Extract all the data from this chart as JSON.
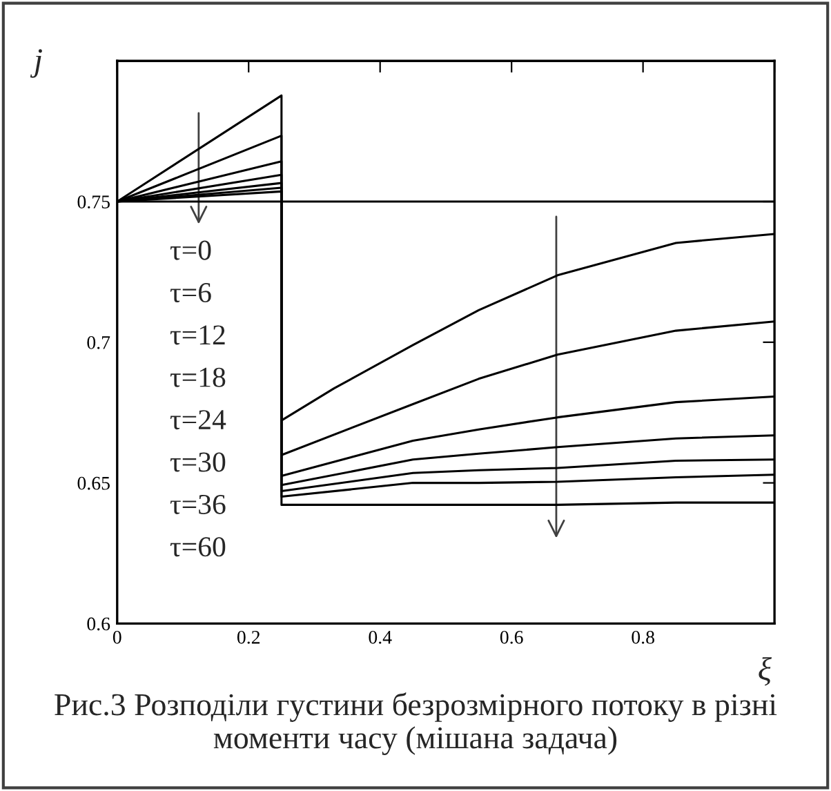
{
  "chart_data": {
    "type": "line",
    "xlabel": "ξ",
    "ylabel": "j",
    "xlim": [
      0,
      1
    ],
    "ylim": [
      0.6,
      0.8
    ],
    "xticks": [
      0,
      0.2,
      0.4,
      0.6,
      0.8,
      {
        "value": 1,
        "label": null
      }
    ],
    "yticks": [
      0.6,
      0.65,
      0.7,
      0.75,
      {
        "value": 0.8,
        "label": null
      }
    ],
    "grid": false,
    "legend": false,
    "marker": "none",
    "line_style": "solid",
    "series": [
      {
        "color": "#000000",
        "x": [
          0,
          1
        ],
        "values": [
          0.75,
          0.75
        ]
      },
      {
        "color": "#000000",
        "x": [
          0,
          0.25,
          0.25,
          0.33,
          0.45,
          0.55,
          0.67,
          0.85,
          1.0
        ],
        "values": [
          0.75,
          0.7877,
          0.6722,
          0.6836,
          0.699,
          0.7114,
          0.7238,
          0.7353,
          0.7385
        ]
      },
      {
        "color": "#000000",
        "x": [
          0,
          0.25,
          0.25,
          0.45,
          0.55,
          0.67,
          0.85,
          1.0
        ],
        "values": [
          0.75,
          0.7734,
          0.6599,
          0.678,
          0.687,
          0.6956,
          0.7041,
          0.7074
        ]
      },
      {
        "color": "#000000",
        "x": [
          0,
          0.25,
          0.25,
          0.45,
          0.55,
          0.67,
          0.85,
          1.0
        ],
        "values": [
          0.75,
          0.7643,
          0.6525,
          0.665,
          0.669,
          0.6733,
          0.6787,
          0.6807
        ]
      },
      {
        "color": "#000000",
        "x": [
          0,
          0.25,
          0.25,
          0.45,
          0.55,
          0.67,
          0.85,
          1.0
        ],
        "values": [
          0.75,
          0.7595,
          0.6492,
          0.6583,
          0.6604,
          0.6627,
          0.6658,
          0.6669
        ]
      },
      {
        "color": "#000000",
        "x": [
          0,
          0.25,
          0.25,
          0.45,
          0.55,
          0.67,
          0.85,
          1.0
        ],
        "values": [
          0.75,
          0.7566,
          0.6471,
          0.6535,
          0.6545,
          0.6553,
          0.6579,
          0.6583
        ]
      },
      {
        "color": "#000000",
        "x": [
          0,
          0.25,
          0.25,
          0.45,
          0.55,
          0.67,
          0.85,
          1.0
        ],
        "values": [
          0.75,
          0.7549,
          0.6451,
          0.65,
          0.65,
          0.6504,
          0.652,
          0.6529
        ]
      },
      {
        "color": "#000000",
        "x": [
          0,
          0.25,
          0.25,
          0.45,
          0.55,
          0.67,
          0.85,
          1.0
        ],
        "values": [
          0.75,
          0.7536,
          0.6422,
          0.6422,
          0.6422,
          0.6422,
          0.643,
          0.643
        ]
      }
    ],
    "annotations": [
      "τ=0",
      "τ=6",
      "τ=12",
      "τ=18",
      "τ=24",
      "τ=30",
      "τ=36",
      "τ=60",
      "Рис.3 Розподіли густини безрозмірного потоку в різні моменти часу (мішана задача)"
    ]
  }
}
